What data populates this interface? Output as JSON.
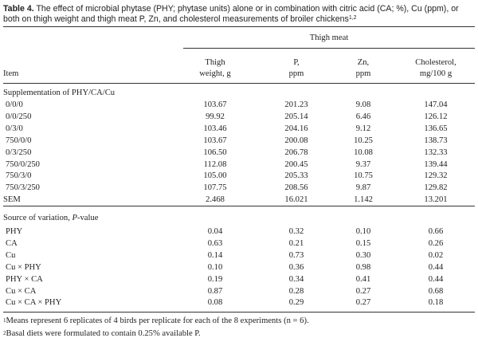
{
  "caption": {
    "label": "Table 4.",
    "text": "The effect of microbial phytase (PHY; phytase units) alone or in combination with citric acid (CA; %), Cu (ppm), or both on thigh weight and thigh meat P, Zn, and cholesterol measurements of broiler chickens",
    "sup": "1,2"
  },
  "header": {
    "group": "Thigh meat",
    "item": "Item",
    "col1_l1": "Thigh",
    "col1_l2": "weight, g",
    "col2_l1": "P,",
    "col2_l2": "ppm",
    "col3_l1": "Zn,",
    "col3_l2": "ppm",
    "col4_l1": "Cholesterol,",
    "col4_l2": "mg/100 g"
  },
  "section1": {
    "title": "Supplementation of PHY/CA/Cu",
    "rows": [
      {
        "item": "0/0/0",
        "w": "103.67",
        "p": "201.23",
        "zn": "9.08",
        "chol": "147.04"
      },
      {
        "item": "0/0/250",
        "w": "99.92",
        "p": "205.14",
        "zn": "6.46",
        "chol": "126.12"
      },
      {
        "item": "0/3/0",
        "w": "103.46",
        "p": "204.16",
        "zn": "9.12",
        "chol": "136.65"
      },
      {
        "item": "750/0/0",
        "w": "103.67",
        "p": "200.08",
        "zn": "10.25",
        "chol": "138.73"
      },
      {
        "item": "0/3/250",
        "w": "106.50",
        "p": "206.78",
        "zn": "10.08",
        "chol": "132.33"
      },
      {
        "item": "750/0/250",
        "w": "112.08",
        "p": "200.45",
        "zn": "9.37",
        "chol": "139.44"
      },
      {
        "item": "750/3/0",
        "w": "105.00",
        "p": "205.33",
        "zn": "10.75",
        "chol": "129.32"
      },
      {
        "item": "750/3/250",
        "w": "107.75",
        "p": "208.56",
        "zn": "9.87",
        "chol": "129.82"
      }
    ],
    "sem": {
      "item": "SEM",
      "w": "2.468",
      "p": "16.021",
      "zn": "1.142",
      "chol": "13.201"
    }
  },
  "section2": {
    "title_prefix": "Source of variation, ",
    "title_italic": "P",
    "title_suffix": "-value",
    "rows": [
      {
        "item": "PHY",
        "w": "0.04",
        "p": "0.32",
        "zn": "0.10",
        "chol": "0.66"
      },
      {
        "item": "CA",
        "w": "0.63",
        "p": "0.21",
        "zn": "0.15",
        "chol": "0.26"
      },
      {
        "item": "Cu",
        "w": "0.14",
        "p": "0.73",
        "zn": "0.30",
        "chol": "0.02"
      },
      {
        "item": "Cu × PHY",
        "w": "0.10",
        "p": "0.36",
        "zn": "0.98",
        "chol": "0.44"
      },
      {
        "item": "PHY × CA",
        "w": "0.19",
        "p": "0.34",
        "zn": "0.41",
        "chol": "0.44"
      },
      {
        "item": "Cu × CA",
        "w": "0.87",
        "p": "0.28",
        "zn": "0.27",
        "chol": "0.68"
      },
      {
        "item": "Cu × CA × PHY",
        "w": "0.08",
        "p": "0.29",
        "zn": "0.27",
        "chol": "0.18"
      }
    ]
  },
  "footnotes": [
    {
      "sup": "1",
      "text": "Means represent 6 replicates of 4 birds per replicate for each of the 8 experiments (n = 6)."
    },
    {
      "sup": "2",
      "text": "Basal diets were formulated to contain 0.25% available P."
    }
  ]
}
